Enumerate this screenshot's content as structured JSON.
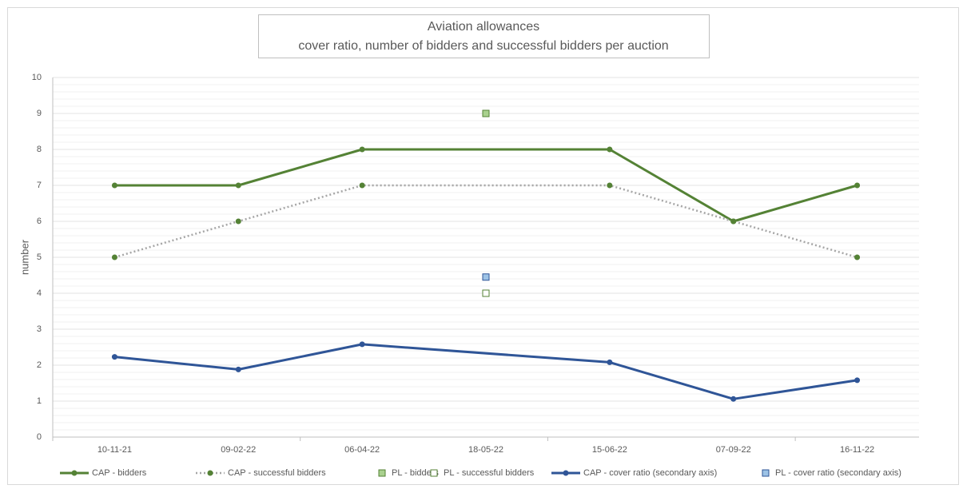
{
  "chart_data": {
    "type": "line",
    "title": "Aviation allowances",
    "subtitle": "cover ratio, number of bidders and successful bidders per auction",
    "y_label": "number",
    "categories": [
      "10-11-21",
      "09-02-22",
      "06-04-22",
      "18-05-22",
      "15-06-22",
      "07-09-22",
      "16-11-22"
    ],
    "ylim": [
      0,
      10
    ],
    "yticks": [
      0,
      1,
      2,
      3,
      4,
      5,
      6,
      7,
      8,
      9,
      10
    ],
    "y2lim": [
      0,
      10
    ],
    "grid": true,
    "minor_grid": true,
    "span_gaps": true,
    "legend": "bottom",
    "series": [
      {
        "name": "CAP - bidders",
        "color": "#548235",
        "line": "solid",
        "marker": "circle",
        "values": [
          7,
          7,
          8,
          null,
          8,
          6,
          7
        ]
      },
      {
        "name": "CAP - successful bidders",
        "color": "#548235",
        "line_color": "#a6a6a6",
        "line": "dotted",
        "marker": "circle",
        "values": [
          5,
          6,
          7,
          null,
          7,
          6,
          5
        ]
      },
      {
        "name": "PL - bidders",
        "color": "#548235",
        "fill": "#a9d18e",
        "marker": "square",
        "values": [
          null,
          null,
          null,
          9,
          null,
          null,
          null
        ]
      },
      {
        "name": "PL - successful bidders",
        "color": "#548235",
        "fill": "#ffffff",
        "marker": "square",
        "values": [
          null,
          null,
          null,
          4,
          null,
          null,
          null
        ]
      },
      {
        "name": "CAP - cover ratio (secondary axis)",
        "color": "#2f5597",
        "line": "solid",
        "marker": "circle",
        "axis": "y2",
        "values": [
          2.23,
          1.88,
          2.58,
          null,
          2.08,
          1.06,
          1.58
        ]
      },
      {
        "name": "PL - cover ratio (secondary axis)",
        "color": "#2f5597",
        "fill": "#9dc3e6",
        "marker": "square",
        "axis": "y2",
        "values": [
          null,
          null,
          null,
          4.45,
          null,
          null,
          null
        ]
      }
    ]
  }
}
